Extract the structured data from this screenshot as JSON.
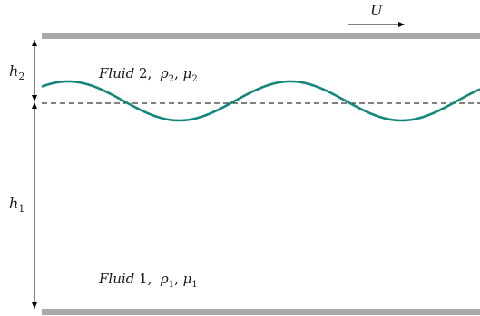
{
  "labels": {
    "velocity": "U",
    "h2_base": "h",
    "h2_sub": "2",
    "h1_base": "h",
    "h1_sub": "1",
    "fluid2_word": "Fluid",
    "fluid2_num": " 2,  ",
    "fluid2_rho": "ρ",
    "fluid2_rho_sub": "2",
    "fluid2_sep": ", ",
    "fluid2_mu": "μ",
    "fluid2_mu_sub": "2",
    "fluid1_word": "Fluid",
    "fluid1_num": " 1,  ",
    "fluid1_rho": "ρ",
    "fluid1_rho_sub": "1",
    "fluid1_sep": ", ",
    "fluid1_mu": "μ",
    "fluid1_mu_sub": "1"
  },
  "colors": {
    "wall": "#a9a9a9",
    "interface": "#14877d",
    "line": "#000000"
  }
}
